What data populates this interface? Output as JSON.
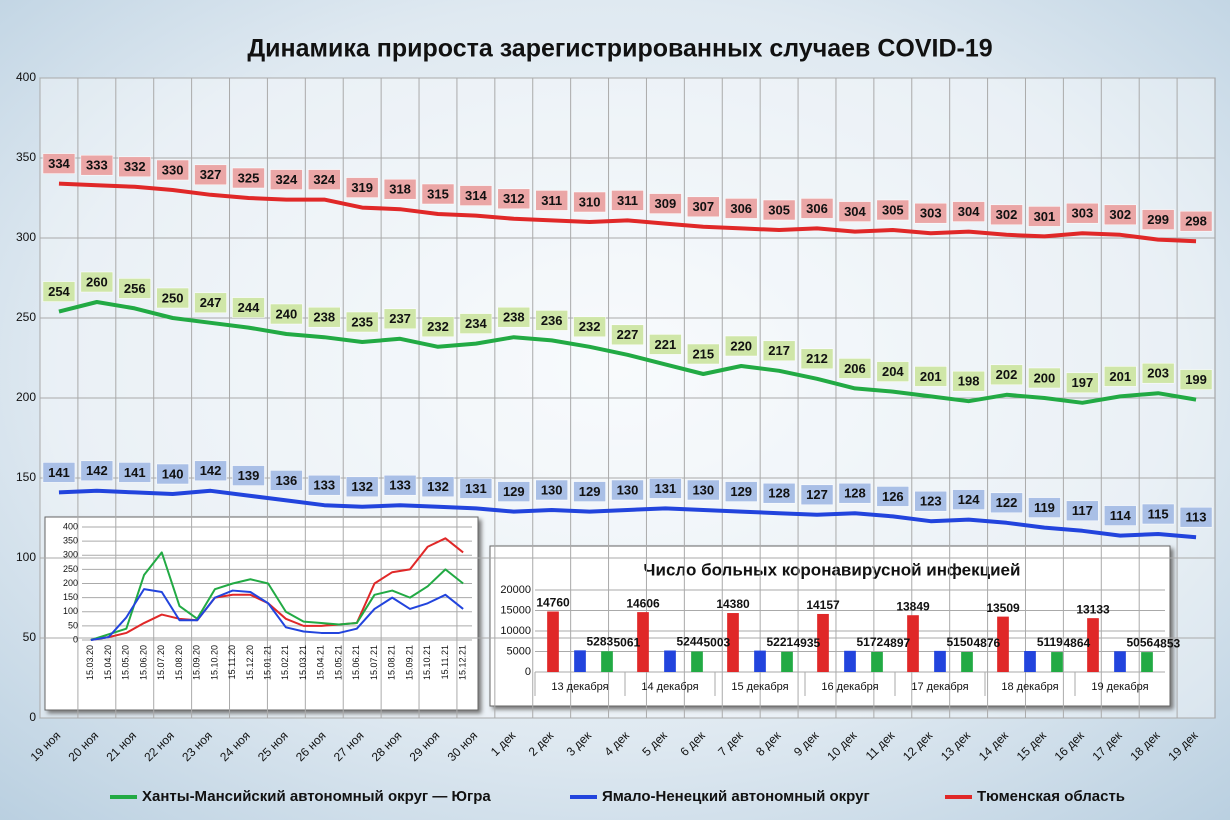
{
  "chart_data": [
    {
      "type": "line",
      "title": "Динамика прироста зарегистрированных случаев COVID-19",
      "categories": [
        "19 ноя",
        "20 ноя",
        "21 ноя",
        "22 ноя",
        "23 ноя",
        "24 ноя",
        "25 ноя",
        "26 ноя",
        "27 ноя",
        "28 ноя",
        "29 ноя",
        "30 ноя",
        "1 дек",
        "2 дек",
        "3 дек",
        "4 дек",
        "5 дек",
        "6 дек",
        "7 дек",
        "8 дек",
        "9 дек",
        "10 дек",
        "11 дек",
        "12 дек",
        "13 дек",
        "14 дек",
        "15 дек",
        "16 дек",
        "17 дек",
        "18 дек",
        "19 дек"
      ],
      "series": [
        {
          "name": "Ханты-Мансийский автономный округ — Югра",
          "color": "#22aa44",
          "label_color": "#cfe6a8",
          "values": [
            254,
            260,
            256,
            250,
            247,
            244,
            240,
            238,
            235,
            237,
            232,
            234,
            238,
            236,
            232,
            227,
            221,
            215,
            220,
            217,
            212,
            206,
            204,
            201,
            198,
            202,
            200,
            197,
            201,
            203,
            199
          ]
        },
        {
          "name": "Ямало-Ненецкий автономный округ",
          "color": "#2244dd",
          "label_color": "#a9bfe6",
          "values": [
            141,
            142,
            141,
            140,
            142,
            139,
            136,
            133,
            132,
            133,
            132,
            131,
            129,
            130,
            129,
            130,
            131,
            130,
            129,
            128,
            127,
            128,
            126,
            123,
            124,
            122,
            119,
            117,
            114,
            115,
            113
          ]
        },
        {
          "name": "Тюменская область",
          "color": "#e02828",
          "label_color": "#eaa6a6",
          "values": [
            334,
            333,
            332,
            330,
            327,
            325,
            324,
            324,
            319,
            318,
            315,
            314,
            312,
            311,
            310,
            311,
            309,
            307,
            306,
            305,
            306,
            304,
            305,
            303,
            304,
            302,
            301,
            303,
            302,
            299,
            298
          ]
        }
      ],
      "ylim": [
        0,
        400
      ],
      "yticks": [
        0,
        50,
        100,
        150,
        200,
        250,
        300,
        350,
        400
      ],
      "grid": true,
      "legend": "bottom",
      "data_labels": true
    },
    {
      "type": "line",
      "categories": [
        "15.03.20",
        "15.04.20",
        "15.05.20",
        "15.06.20",
        "15.07.20",
        "15.08.20",
        "15.09.20",
        "15.10.20",
        "15.11.20",
        "15.12.20",
        "15.01.21",
        "15.02.21",
        "15.03.21",
        "15.04.21",
        "15.05.21",
        "15.06.21",
        "15.07.21",
        "15.08.21",
        "15.09.21",
        "15.10.21",
        "15.11.21",
        "15.12.21"
      ],
      "series": [
        {
          "color": "#e02828",
          "values": [
            0,
            10,
            25,
            60,
            90,
            75,
            70,
            150,
            160,
            160,
            130,
            75,
            50,
            50,
            55,
            60,
            200,
            240,
            250,
            330,
            360,
            310
          ]
        },
        {
          "color": "#22aa44",
          "values": [
            0,
            20,
            40,
            230,
            310,
            120,
            75,
            180,
            200,
            215,
            200,
            100,
            65,
            60,
            55,
            60,
            160,
            175,
            150,
            190,
            250,
            200
          ]
        },
        {
          "color": "#2244dd",
          "values": [
            0,
            10,
            80,
            180,
            170,
            70,
            70,
            150,
            175,
            170,
            130,
            45,
            30,
            25,
            25,
            40,
            110,
            150,
            110,
            130,
            160,
            110
          ]
        }
      ],
      "ylim": [
        0,
        400
      ],
      "yticks": [
        0,
        50,
        100,
        150,
        200,
        250,
        300,
        350,
        400
      ],
      "grid": true
    },
    {
      "type": "bar",
      "title": "Число больных коронавирусной инфекцией",
      "categories": [
        "13 декабря",
        "14 декабря",
        "15 декабря",
        "16 декабря",
        "17 декабря",
        "18 декабря",
        "19 декабря"
      ],
      "series": [
        {
          "color": "#e02828",
          "values": [
            14760,
            14606,
            14380,
            14157,
            13849,
            13509,
            13133
          ]
        },
        {
          "color": "#2244dd",
          "values": [
            5283,
            5244,
            5221,
            5172,
            5150,
            5119,
            5056
          ]
        },
        {
          "color": "#22aa44",
          "values": [
            5061,
            5003,
            4935,
            4897,
            4876,
            4864,
            4853
          ]
        }
      ],
      "ylim": [
        0,
        20000
      ],
      "yticks": [
        0,
        5000,
        10000,
        15000,
        20000
      ],
      "grid": true,
      "data_labels": true
    }
  ]
}
